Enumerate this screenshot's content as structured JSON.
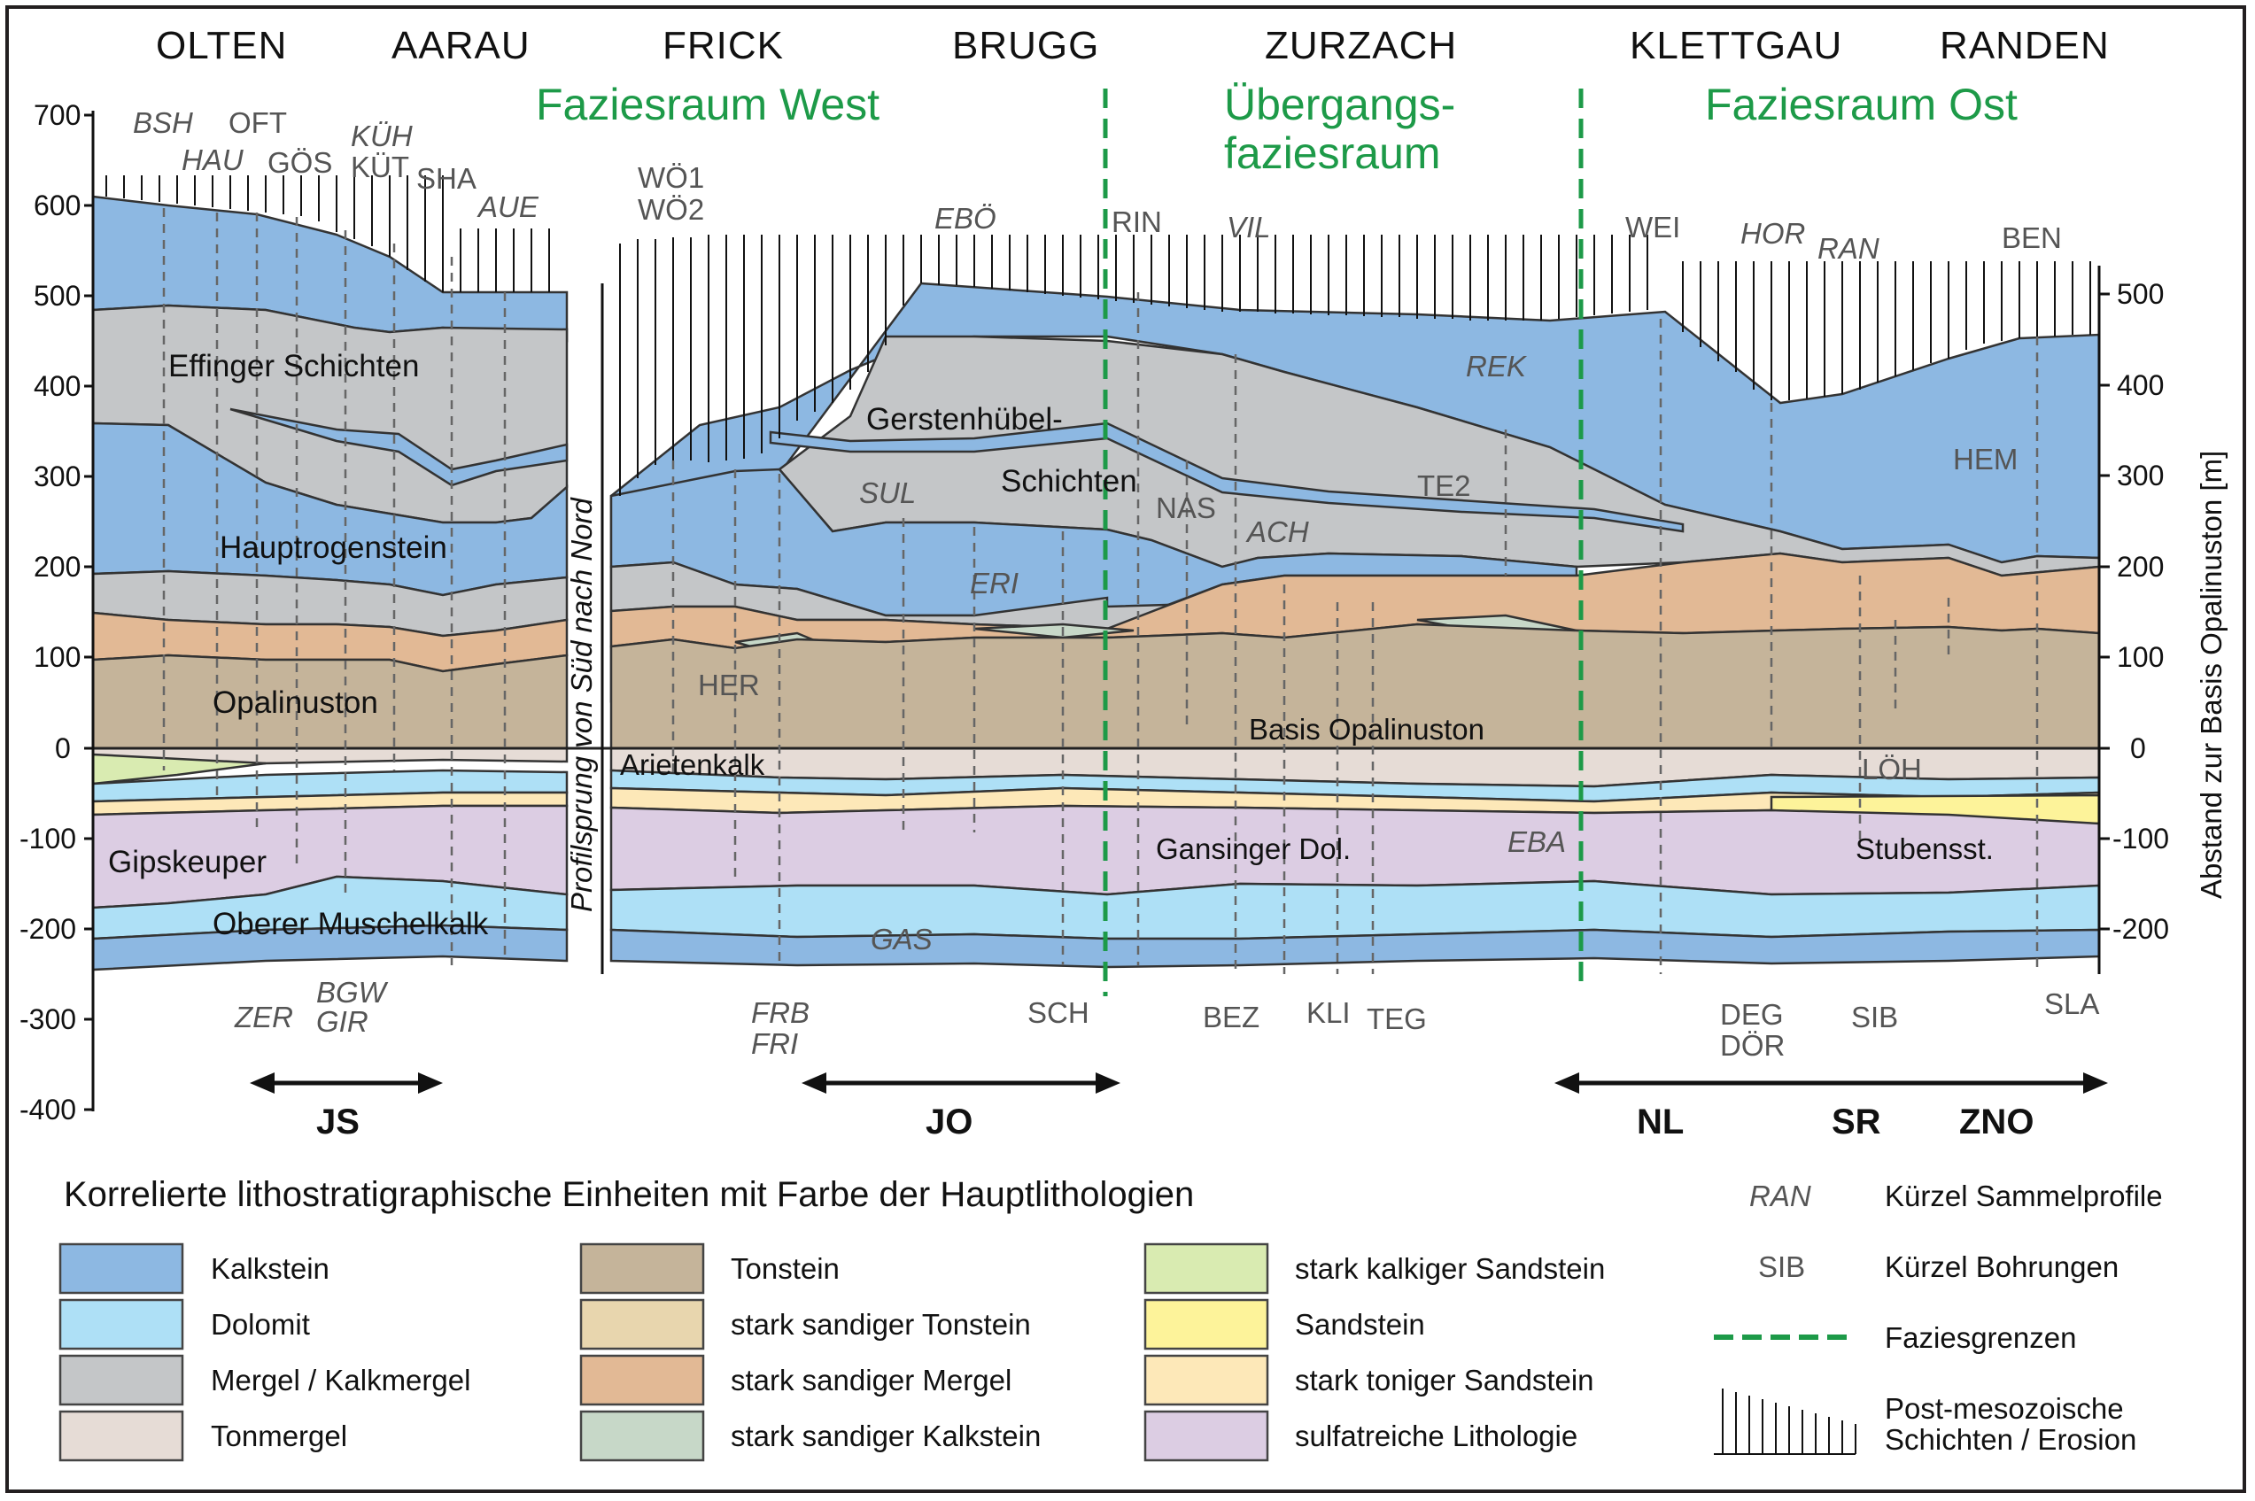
{
  "cities": [
    "OLTEN",
    "AARAU",
    "FRICK",
    "BRUGG",
    "ZURZACH",
    "KLETTGAU",
    "RANDEN"
  ],
  "zones": {
    "west": "Faziesraum West",
    "transition_line1": "Übergangs-",
    "transition_line2": "faziesraum",
    "east": "Faziesraum Ost"
  },
  "y_axis_left": [
    "700",
    "600",
    "500",
    "400",
    "300",
    "200",
    "100",
    "0",
    "-100",
    "-200",
    "-300",
    "-400"
  ],
  "y_axis_right": [
    "500",
    "400",
    "300",
    "200",
    "100",
    "0",
    "-100",
    "-200"
  ],
  "y_axis_right_label": "Abstand zur Basis Opalinuston [m]",
  "profile_jump_label": "Profilsprung von Süd nach Nord",
  "collective_profile_codes": [
    "BSH",
    "HAU",
    "KÜH",
    "AUE",
    "EBÖ",
    "VIL",
    "HOR",
    "RAN",
    "SUL",
    "ERI",
    "ACH",
    "REK",
    "ZER",
    "BGW",
    "GIR",
    "FRB",
    "FRI",
    "GAS",
    "EBA"
  ],
  "borehole_codes": [
    "OFT",
    "GÖS",
    "KÜT",
    "SHA",
    "WÖ1",
    "WÖ2",
    "RIN",
    "WEI",
    "BEN",
    "HER",
    "NAS",
    "TE2",
    "HEM",
    "LÖH",
    "SCH",
    "BEZ",
    "KLI",
    "TEG",
    "DEG",
    "DÖR",
    "SIB",
    "SLA"
  ],
  "units": {
    "effinger": "Effinger Schichten",
    "hauptrogenstein": "Hauptrogenstein",
    "opalinuston": "Opalinuston",
    "gipskeuper": "Gipskeuper",
    "oberer_muschelkalk": "Oberer Muschelkalk",
    "gerstenhuebel1": "Gerstenhübel-",
    "gerstenhuebel2": "Schichten",
    "arietenkalk": "Arietenkalk",
    "basis_opalinuston": "Basis Opalinuston",
    "gansinger": "Gansinger Dol.",
    "stubensst": "Stubensst."
  },
  "sections": [
    "JS",
    "JO",
    "NL",
    "SR",
    "ZNO"
  ],
  "legend": {
    "title": "Korrelierte lithostratigraphische Einheiten mit Farbe der Hauptlithologien",
    "items": [
      {
        "label": "Kalkstein",
        "color": "#8db8e2"
      },
      {
        "label": "Dolomit",
        "color": "#aee0f6"
      },
      {
        "label": "Mergel / Kalkmergel",
        "color": "#c4c6c8"
      },
      {
        "label": "Tonmergel",
        "color": "#e6dcd6"
      },
      {
        "label": "Tonstein",
        "color": "#c5b49a"
      },
      {
        "label": "stark sandiger Tonstein",
        "color": "#e8d6ae"
      },
      {
        "label": "stark sandiger Mergel",
        "color": "#e2b995"
      },
      {
        "label": "stark sandiger Kalkstein",
        "color": "#c7d8c8"
      },
      {
        "label": "stark kalkiger Sandstein",
        "color": "#d9ebb1"
      },
      {
        "label": "Sandstein",
        "color": "#fdf39a"
      },
      {
        "label": "stark toniger Sandstein",
        "color": "#fde8b8"
      },
      {
        "label": "sulfatreiche Lithologie",
        "color": "#dccde3"
      }
    ],
    "symbols": [
      {
        "code": "RAN",
        "label": "Kürzel Sammelprofile"
      },
      {
        "code": "SIB",
        "label": "Kürzel Bohrungen"
      },
      {
        "label": "Faziesgrenzen",
        "color": "#1d9a48"
      },
      {
        "label_line1": "Post-mesozoische",
        "label_line2": "Schichten / Erosion"
      }
    ]
  }
}
